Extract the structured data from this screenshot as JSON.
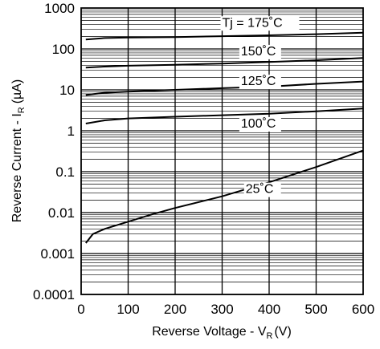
{
  "chart_data": {
    "type": "line",
    "xlabel": "Reverse Voltage - V",
    "xlabel_sub": "R",
    "xlabel_unit": "(V)",
    "ylabel": "Reverse Current - I",
    "ylabel_sub": "R",
    "ylabel_unit": "(µA)",
    "xlim": [
      0,
      600
    ],
    "ylim": [
      0.0001,
      1000
    ],
    "yscale": "log",
    "grid": true,
    "x_ticks": [
      "0",
      "100",
      "200",
      "300",
      "400",
      "500",
      "600"
    ],
    "y_ticks": [
      "0.0001",
      "0.001",
      "0.01",
      "0.1",
      "1",
      "10",
      "100",
      "1000"
    ],
    "series": [
      {
        "name": "Tj = 175˚C",
        "x": [
          10,
          50,
          100,
          200,
          300,
          400,
          500,
          600
        ],
        "y": [
          170,
          185,
          190,
          195,
          205,
          215,
          230,
          250
        ]
      },
      {
        "name": "150˚C",
        "x": [
          10,
          50,
          100,
          200,
          300,
          400,
          500,
          600
        ],
        "y": [
          35,
          37,
          39,
          41,
          44,
          48,
          53,
          60
        ]
      },
      {
        "name": "125˚C",
        "x": [
          10,
          50,
          100,
          200,
          300,
          400,
          500,
          600
        ],
        "y": [
          7.5,
          8.5,
          9.0,
          10,
          11,
          12,
          14,
          16
        ]
      },
      {
        "name": "100˚C",
        "x": [
          10,
          50,
          100,
          200,
          300,
          400,
          500,
          600
        ],
        "y": [
          1.5,
          1.8,
          2.0,
          2.2,
          2.4,
          2.6,
          3.0,
          3.5
        ]
      },
      {
        "name": "25˚C",
        "x": [
          10,
          25,
          50,
          100,
          150,
          200,
          300,
          400,
          500,
          600
        ],
        "y": [
          0.0018,
          0.003,
          0.004,
          0.006,
          0.009,
          0.013,
          0.025,
          0.055,
          0.13,
          0.33
        ]
      }
    ]
  }
}
